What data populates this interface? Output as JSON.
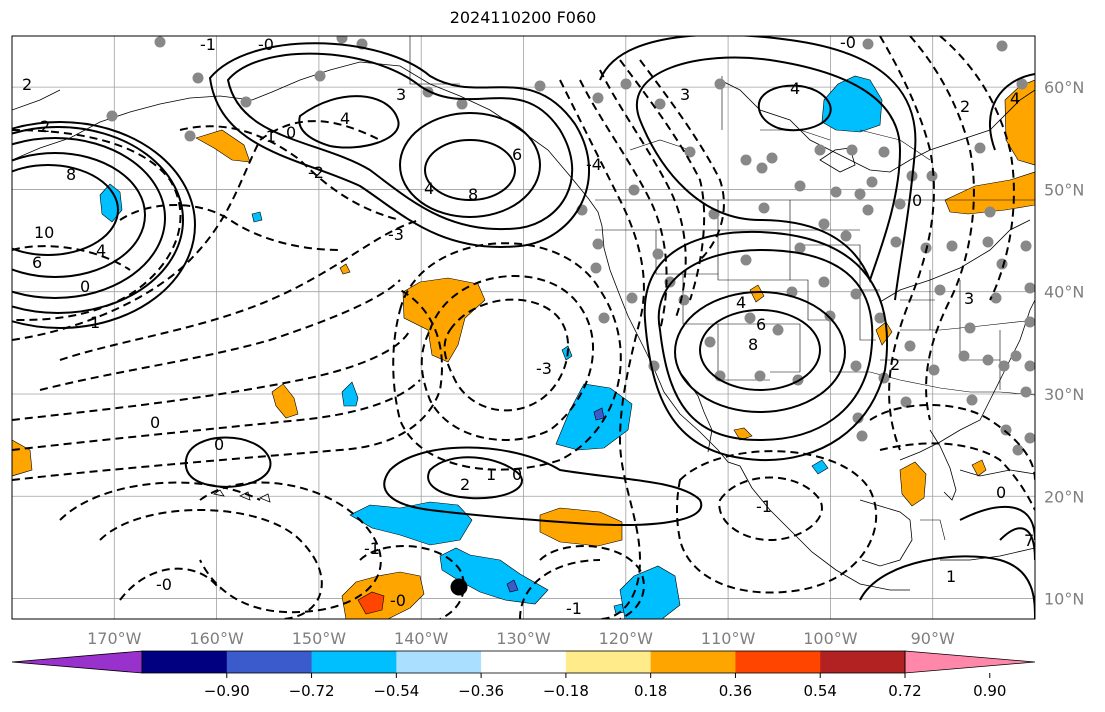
{
  "title": "2024110200 F060",
  "map": {
    "lon_range": [
      -180,
      -80
    ],
    "lat_range": [
      8,
      65
    ],
    "lon_ticks": [
      {
        "lon": -170,
        "label": "170°W"
      },
      {
        "lon": -160,
        "label": "160°W"
      },
      {
        "lon": -150,
        "label": "150°W"
      },
      {
        "lon": -140,
        "label": "140°W"
      },
      {
        "lon": -130,
        "label": "130°W"
      },
      {
        "lon": -120,
        "label": "120°W"
      },
      {
        "lon": -110,
        "label": "110°W"
      },
      {
        "lon": -100,
        "label": "100°W"
      },
      {
        "lon": -90,
        "label": "90°W"
      }
    ],
    "lat_ticks": [
      {
        "lat": 60,
        "label": "60°N"
      },
      {
        "lat": 50,
        "label": "50°N"
      },
      {
        "lat": 40,
        "label": "40°N"
      },
      {
        "lat": 30,
        "label": "30°N"
      },
      {
        "lat": 20,
        "label": "20°N"
      },
      {
        "lat": 10,
        "label": "10°N"
      }
    ],
    "grid": true,
    "contour_labels": [
      "0",
      "-1",
      "-2",
      "-3",
      "-4",
      "1",
      "2",
      "3",
      "4",
      "6",
      "8",
      "10"
    ]
  },
  "colorbar": {
    "colors": [
      "#9932cc",
      "#000080",
      "#3b5bcc",
      "#00bfff",
      "#aadfff",
      "#ffffff",
      "#ffeb8a",
      "#ffa500",
      "#ff4500",
      "#b22222",
      "#ff88aa"
    ],
    "ticks": [
      "−0.90",
      "−0.72",
      "−0.54",
      "−0.36",
      "−0.18",
      "0.18",
      "0.36",
      "0.54",
      "0.72",
      "0.90"
    ],
    "extend": "both"
  }
}
